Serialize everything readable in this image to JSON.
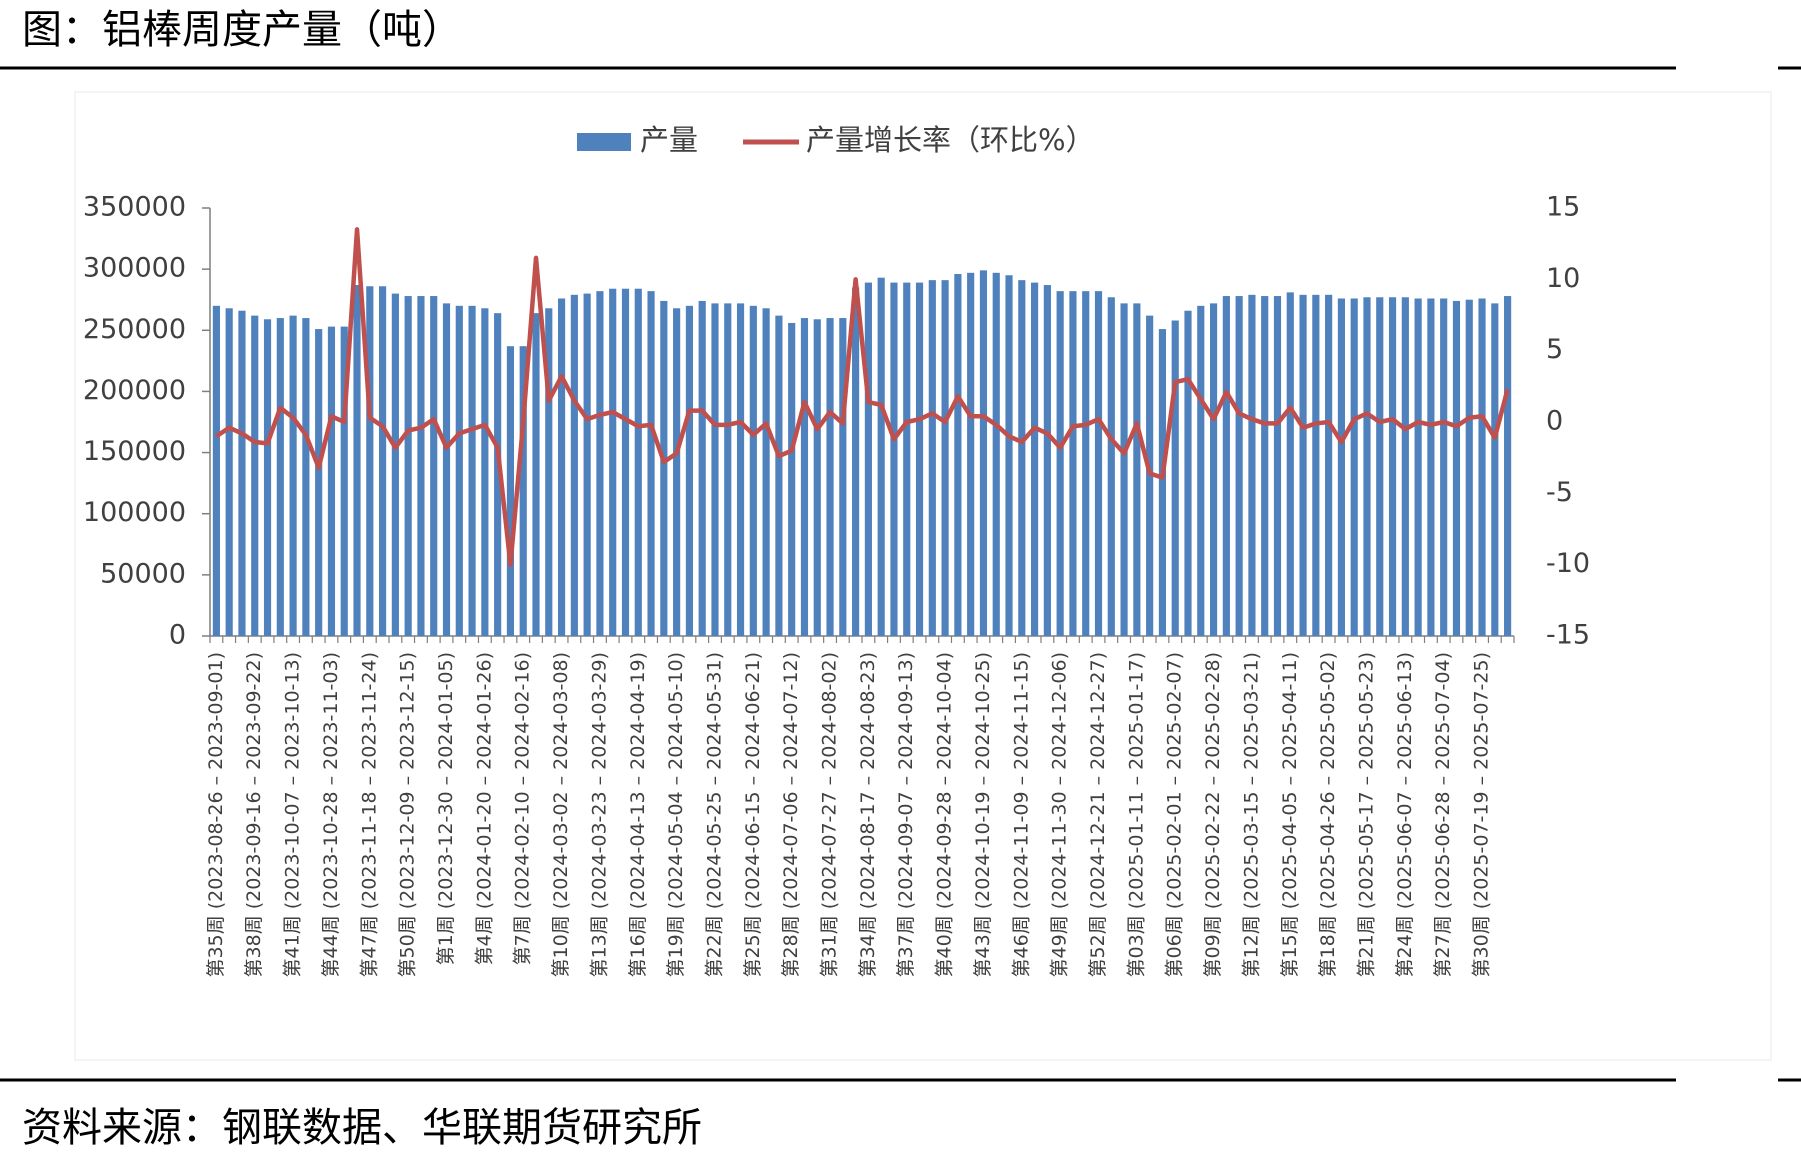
{
  "header": {
    "title": "图：铝棒周度产量（吨）"
  },
  "chart_data": {
    "type": "bar-line",
    "categories": [
      "第35周 (2023-08-26 – 2023-09-01)",
      null,
      null,
      "第38周 (2023-09-16 – 2023-09-22)",
      null,
      null,
      "第41周 (2023-10-07 – 2023-10-13)",
      null,
      null,
      "第44周 (2023-10-28 – 2023-11-03)",
      null,
      null,
      "第47周 (2023-11-18 – 2023-11-24)",
      null,
      null,
      "第50周 (2023-12-09 – 2023-12-15)",
      null,
      null,
      "第1周 (2023-12-30 – 2024-01-05)",
      null,
      null,
      "第4周 (2024-01-20 – 2024-01-26)",
      null,
      null,
      "第7周 (2024-02-10 – 2024-02-16)",
      null,
      null,
      "第10周 (2024-03-02 – 2024-03-08)",
      null,
      null,
      "第13周 (2024-03-23 – 2024-03-29)",
      null,
      null,
      "第16周 (2024-04-13 – 2024-04-19)",
      null,
      null,
      "第19周 (2024-05-04 – 2024-05-10)",
      null,
      null,
      "第22周 (2024-05-25 – 2024-05-31)",
      null,
      null,
      "第25周 (2024-06-15 – 2024-06-21)",
      null,
      null,
      "第28周 (2024-07-06 – 2024-07-12)",
      null,
      null,
      "第31周 (2024-07-27 – 2024-08-02)",
      null,
      null,
      "第34周 (2024-08-17 – 2024-08-23)",
      null,
      null,
      "第37周 (2024-09-07 – 2024-09-13)",
      null,
      null,
      "第40周 (2024-09-28 – 2024-10-04)",
      null,
      null,
      "第43周 (2024-10-19 – 2024-10-25)",
      null,
      null,
      "第46周 (2024-11-09 – 2024-11-15)",
      null,
      null,
      "第49周 (2024-11-30 – 2024-12-06)",
      null,
      null,
      "第52周 (2024-12-21 – 2024-12-27)",
      null,
      null,
      "第03周 (2025-01-11 – 2025-01-17)",
      null,
      null,
      "第06周 (2025-02-01 – 2025-02-07)",
      null,
      null,
      "第09周 (2025-02-22 – 2025-02-28)",
      null,
      null,
      "第12周 (2025-03-15 – 2025-03-21)",
      null,
      null,
      "第15周 (2025-04-05 – 2025-04-11)",
      null,
      null,
      "第18周 (2025-04-26 – 2025-05-02)",
      null,
      null,
      "第21周 (2025-05-17 – 2025-05-23)",
      null,
      null,
      "第24周 (2025-06-07 – 2025-06-13)",
      null,
      null,
      "第27周 (2025-06-28 – 2025-07-04)",
      null,
      null,
      "第30周 (2025-07-19 – 2025-07-25)",
      null,
      null
    ],
    "series": [
      {
        "name": "产量",
        "type": "bar",
        "color": "#4f81bd",
        "values": [
          270000,
          268000,
          266000,
          262000,
          259000,
          260000,
          262000,
          260000,
          251000,
          253000,
          253000,
          287000,
          286000,
          286000,
          280000,
          278000,
          278000,
          278000,
          272000,
          270000,
          270000,
          268000,
          264000,
          237000,
          237000,
          264000,
          268000,
          276000,
          279000,
          280000,
          282000,
          284000,
          284000,
          284000,
          282000,
          274000,
          268000,
          270000,
          274000,
          272000,
          272000,
          272000,
          270000,
          268000,
          262000,
          256000,
          260000,
          259000,
          260000,
          260000,
          285000,
          289000,
          293000,
          289000,
          289000,
          289000,
          291000,
          291000,
          296000,
          297000,
          299000,
          297000,
          295000,
          291000,
          289000,
          287000,
          282000,
          282000,
          282000,
          282000,
          277000,
          272000,
          272000,
          262000,
          251000,
          258000,
          266000,
          270000,
          272000,
          278000,
          278000,
          279000,
          278000,
          278000,
          281000,
          279000,
          279000,
          279000,
          276000,
          276000,
          277000,
          277000,
          277000,
          277000,
          276000,
          276000,
          276000,
          274000,
          275000,
          276000,
          272000,
          278000
        ]
      },
      {
        "name": "产量增长率（环比%）",
        "type": "line",
        "axis": "y2",
        "color": "#c0504d",
        "values": [
          -1,
          -0.4,
          -0.8,
          -1.4,
          -1.5,
          1,
          0.3,
          -0.9,
          -3.2,
          0.4,
          0,
          13.5,
          0.3,
          -0.3,
          -1.8,
          -0.6,
          -0.4,
          0.2,
          -1.8,
          -0.8,
          -0.5,
          -0.2,
          -1.8,
          -10,
          0,
          11.5,
          1.5,
          3.2,
          1.5,
          0.2,
          0.5,
          0.7,
          0.2,
          -0.3,
          -0.2,
          -2.8,
          -2.2,
          0.8,
          0.8,
          -0.2,
          -0.2,
          0,
          -0.9,
          -0.1,
          -2.4,
          -2,
          1.4,
          -0.5,
          0.7,
          -0.1,
          10,
          1.4,
          1.2,
          -1.2,
          0,
          0.2,
          0.6,
          0,
          1.8,
          0.4,
          0.4,
          -0.2,
          -1,
          -1.4,
          -0.4,
          -0.8,
          -1.8,
          -0.3,
          -0.2,
          0.2,
          -1.2,
          -2.2,
          -0.1,
          -3.6,
          -3.9,
          2.8,
          3,
          1.6,
          0.2,
          2.1,
          0.6,
          0.2,
          -0.1,
          -0.1,
          1,
          -0.4,
          -0.1,
          0,
          -1.4,
          0.2,
          0.6,
          0,
          0.2,
          -0.5,
          0,
          -0.2,
          0,
          -0.3,
          0.3,
          0.4,
          -1.1,
          2.3
        ]
      }
    ],
    "ylim": [
      0,
      350000
    ],
    "yticks": [
      0,
      50000,
      100000,
      150000,
      200000,
      250000,
      300000,
      350000
    ],
    "y2lim": [
      -15,
      15
    ],
    "y2ticks": [
      -15,
      -10,
      -5,
      0,
      5,
      10,
      15
    ],
    "legend": "top",
    "grid": false
  },
  "footer": {
    "source": "资料来源：钢联数据、华联期货研究所"
  }
}
